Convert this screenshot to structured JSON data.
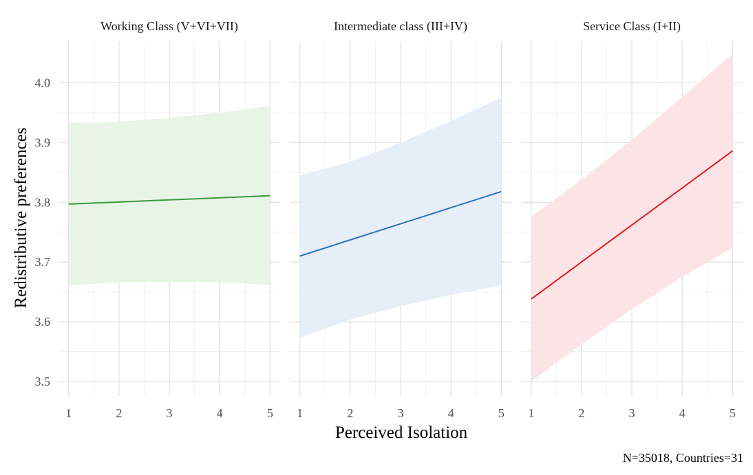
{
  "chart_data": {
    "type": "line",
    "xlabel": "Perceived Isolation",
    "ylabel": "Redistributive preferences",
    "caption": "N=35018, Countries=31",
    "xlim": [
      1,
      5
    ],
    "ylim": [
      3.5,
      4.0
    ],
    "x_ticks": [
      "1",
      "2",
      "3",
      "4",
      "5"
    ],
    "y_ticks": [
      "3.5",
      "3.6",
      "3.7",
      "3.8",
      "3.9",
      "4.0"
    ],
    "grid": true,
    "panels": [
      {
        "title": "Working Class (V+VI+VII)",
        "color": "#3a9a3a",
        "band_color": "#e8f4e6",
        "x": [
          1,
          2,
          3,
          4,
          5
        ],
        "y": [
          3.797,
          3.8005,
          3.804,
          3.8075,
          3.811
        ],
        "lower": [
          3.661,
          3.666,
          3.667,
          3.666,
          3.662
        ],
        "upper": [
          3.933,
          3.935,
          3.941,
          3.95,
          3.961
        ]
      },
      {
        "title": "Intermediate class (III+IV)",
        "color": "#2e75b6",
        "band_color": "#e6eef8",
        "x": [
          1,
          2,
          3,
          4,
          5
        ],
        "y": [
          3.71,
          3.737,
          3.764,
          3.791,
          3.818
        ],
        "lower": [
          3.573,
          3.604,
          3.626,
          3.645,
          3.661
        ],
        "upper": [
          3.845,
          3.868,
          3.9,
          3.936,
          3.975
        ]
      },
      {
        "title": "Service Class (I+II)",
        "color": "#e41a1c",
        "band_color": "#fce4e6",
        "x": [
          1,
          2,
          3,
          4,
          5
        ],
        "y": [
          3.638,
          3.7,
          3.762,
          3.824,
          3.886
        ],
        "lower": [
          3.5,
          3.562,
          3.621,
          3.675,
          3.724
        ],
        "upper": [
          3.776,
          3.838,
          3.904,
          3.977,
          4.048
        ]
      }
    ]
  }
}
